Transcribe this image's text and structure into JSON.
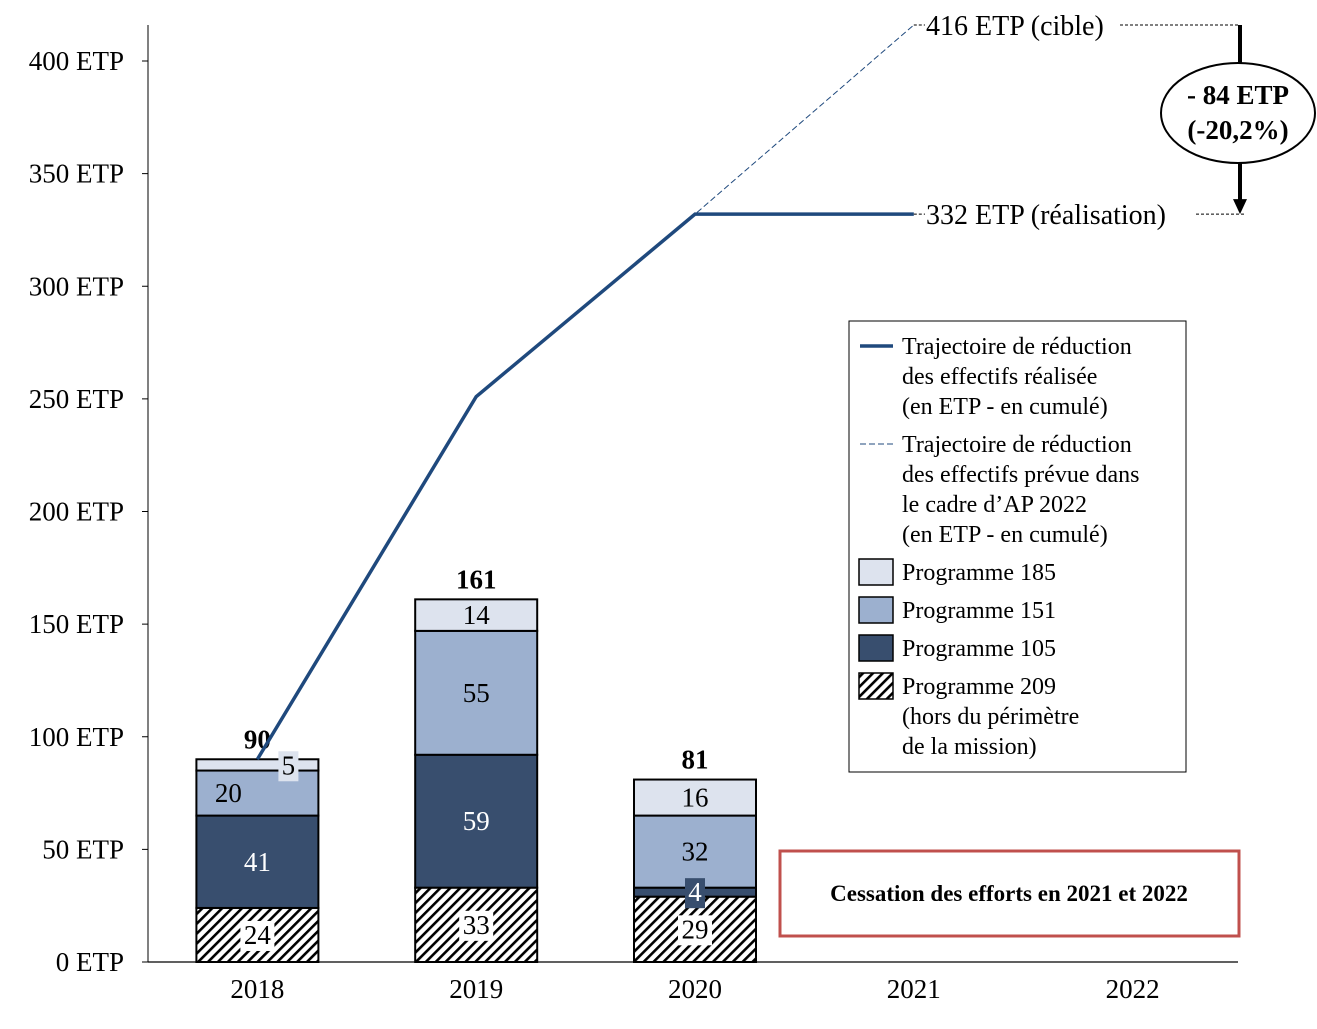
{
  "chart_data": {
    "type": "bar",
    "stacked": true,
    "categories": [
      "2018",
      "2019",
      "2020",
      "2021",
      "2022"
    ],
    "ylim": [
      0,
      400
    ],
    "yticks": [
      0,
      50,
      100,
      150,
      200,
      250,
      300,
      350,
      400
    ],
    "ytick_suffix": " ETP",
    "grid": false,
    "series": [
      {
        "name": "Programme 209",
        "sublabel": [
          "(hors du périmètre",
          "de la mission)"
        ],
        "values": [
          24,
          33,
          29,
          null,
          null
        ],
        "color": "#ffffff",
        "pattern": "hatch"
      },
      {
        "name": "Programme 105",
        "values": [
          41,
          59,
          4,
          null,
          null
        ],
        "color": "#384e6e"
      },
      {
        "name": "Programme 151",
        "values": [
          20,
          55,
          32,
          null,
          null
        ],
        "color": "#9cb0cf"
      },
      {
        "name": "Programme 185",
        "values": [
          5,
          14,
          16,
          null,
          null
        ],
        "color": "#dde3ee"
      }
    ],
    "totals": [
      90,
      161,
      81,
      null,
      null
    ],
    "lines": [
      {
        "name": [
          "Trajectoire de réduction",
          "des effectifs réalisée",
          "(en ETP - en cumulé)"
        ],
        "values": [
          90,
          251,
          332,
          332,
          null
        ],
        "color": "#1f497d",
        "style": "solid"
      },
      {
        "name": [
          "Trajectoire de réduction",
          "des effectifs prévue dans",
          "le cadre d’AP 2022",
          "(en ETP - en cumulé)"
        ],
        "values": [
          90,
          251,
          332,
          416,
          null
        ],
        "color": "#1f497d",
        "style": "dashed"
      }
    ],
    "annotations": {
      "target_label": "416 ETP (cible)",
      "actual_label": "332 ETP (réalisation)",
      "gap_line1": "- 84 ETP",
      "gap_line2": "(-20,2%)",
      "box_text": "Cessation des efforts en 2021 et 2022",
      "box_color": "#c0504d"
    },
    "legend_position": "right"
  }
}
